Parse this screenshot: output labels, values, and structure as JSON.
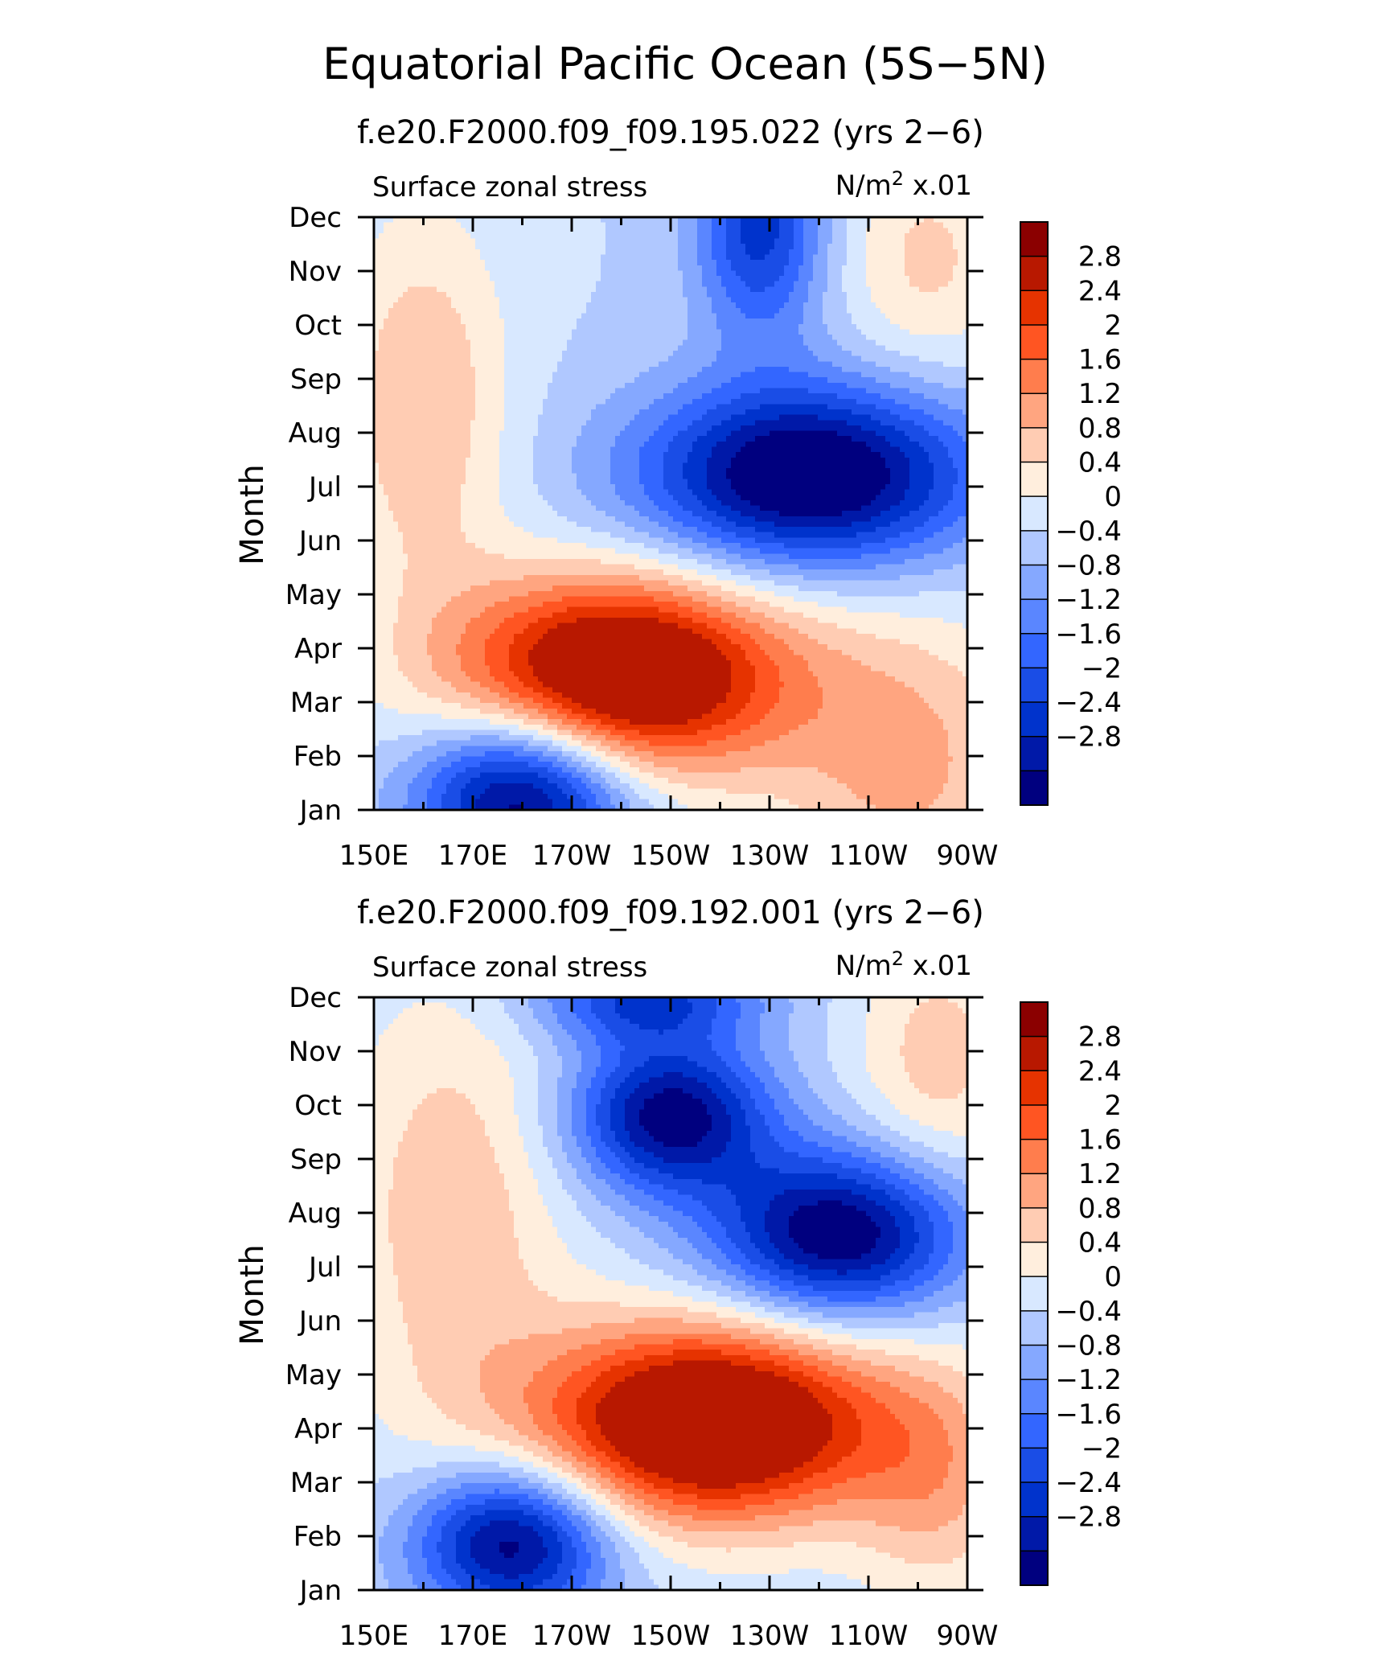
{
  "figure": {
    "title": "Equatorial Pacific Ocean (5S−5N)"
  },
  "chart_data": [
    {
      "type": "heatmap",
      "run_label": "f.e20.F2000.f09_f09.195.022 (yrs 2−6)",
      "left_string": "Surface zonal stress",
      "units": {
        "base": "N/m",
        "sup": "2",
        "scale": " x.01"
      },
      "ylabel": "Month",
      "xlabel": "",
      "x_ticks": [
        "150E",
        "170E",
        "170W",
        "150W",
        "130W",
        "110W",
        "90W"
      ],
      "y_ticks": [
        "Jan",
        "Feb",
        "Mar",
        "Apr",
        "May",
        "Jun",
        "Jul",
        "Aug",
        "Sep",
        "Oct",
        "Nov",
        "Dec"
      ],
      "xlim": [
        150,
        270
      ],
      "ylim": [
        1,
        12
      ],
      "features": [
        {
          "lon": 200,
          "month": 3.5,
          "amp": 4.2,
          "sx": 24,
          "sy": 1.3,
          "tilt": -19
        },
        {
          "lon": 238,
          "month": 7.2,
          "amp": -3.6,
          "sx": 24,
          "sy": 1.2,
          "tilt": -14
        },
        {
          "lon": 180,
          "month": 1.3,
          "amp": -3.4,
          "sx": 15,
          "sy": 1.1,
          "tilt": -10
        },
        {
          "lon": 228,
          "month": 11.8,
          "amp": -2.2,
          "sx": 9,
          "sy": 1.4,
          "tilt": 0
        },
        {
          "lon": 160,
          "month": 8.5,
          "amp": 1.2,
          "sx": 12,
          "sy": 2.5,
          "tilt": 0
        },
        {
          "lon": 262,
          "month": 11.2,
          "amp": 0.9,
          "sx": 12,
          "sy": 1.6,
          "tilt": 0
        },
        {
          "lon": 258,
          "month": 1.8,
          "amp": 1.3,
          "sx": 18,
          "sy": 2.0,
          "tilt": 0
        }
      ],
      "colorbar": {
        "labels": [
          "2.8",
          "2.4",
          "2",
          "1.6",
          "1.2",
          "0.8",
          "0.4",
          "0",
          "−0.4",
          "−0.8",
          "−1.2",
          "−1.6",
          "−2",
          "−2.4",
          "−2.8"
        ]
      }
    },
    {
      "type": "heatmap",
      "run_label": "f.e20.F2000.f09_f09.192.001 (yrs 2−6)",
      "left_string": "Surface zonal stress",
      "units": {
        "base": "N/m",
        "sup": "2",
        "scale": " x.01"
      },
      "ylabel": "Month",
      "xlabel": "",
      "x_ticks": [
        "150E",
        "170E",
        "170W",
        "150W",
        "130W",
        "110W",
        "90W"
      ],
      "y_ticks": [
        "Jan",
        "Feb",
        "Mar",
        "Apr",
        "May",
        "Jun",
        "Jul",
        "Aug",
        "Sep",
        "Oct",
        "Nov",
        "Dec"
      ],
      "xlim": [
        150,
        270
      ],
      "ylim": [
        1,
        12
      ],
      "features": [
        {
          "lon": 218,
          "month": 4.1,
          "amp": 4.3,
          "sx": 25,
          "sy": 1.3,
          "tilt": -18
        },
        {
          "lon": 244,
          "month": 7.6,
          "amp": -3.3,
          "sx": 18,
          "sy": 1.1,
          "tilt": -12
        },
        {
          "lon": 210,
          "month": 9.8,
          "amp": -3.1,
          "sx": 14,
          "sy": 1.0,
          "tilt": -12
        },
        {
          "lon": 178,
          "month": 1.9,
          "amp": -3.2,
          "sx": 14,
          "sy": 1.0,
          "tilt": -8
        },
        {
          "lon": 205,
          "month": 12.0,
          "amp": -2.0,
          "sx": 16,
          "sy": 0.6,
          "tilt": 0
        },
        {
          "lon": 166,
          "month": 8.0,
          "amp": 1.1,
          "sx": 16,
          "sy": 3.0,
          "tilt": 0
        },
        {
          "lon": 264,
          "month": 10.8,
          "amp": 1.0,
          "sx": 12,
          "sy": 1.8,
          "tilt": 0
        },
        {
          "lon": 264,
          "month": 3.0,
          "amp": 1.1,
          "sx": 12,
          "sy": 1.6,
          "tilt": 0
        }
      ],
      "colorbar": {
        "labels": [
          "2.8",
          "2.4",
          "2",
          "1.6",
          "1.2",
          "0.8",
          "0.4",
          "0",
          "−0.4",
          "−0.8",
          "−1.2",
          "−1.6",
          "−2",
          "−2.4",
          "−2.8"
        ]
      }
    }
  ],
  "palette": {
    "levels": [
      -2.8,
      -2.4,
      -2.0,
      -1.6,
      -1.2,
      -0.8,
      -0.4,
      0,
      0.4,
      0.8,
      1.2,
      1.6,
      2.0,
      2.4,
      2.8
    ],
    "colors": [
      "#00007f",
      "#0019a8",
      "#0033cc",
      "#1a4de6",
      "#3366ff",
      "#5a86ff",
      "#85a8ff",
      "#b0c8ff",
      "#d8e8ff",
      "#ffeedd",
      "#ffccb3",
      "#ffa580",
      "#ff7d4d",
      "#ff5522",
      "#e63300",
      "#b81800",
      "#8b0000"
    ]
  }
}
